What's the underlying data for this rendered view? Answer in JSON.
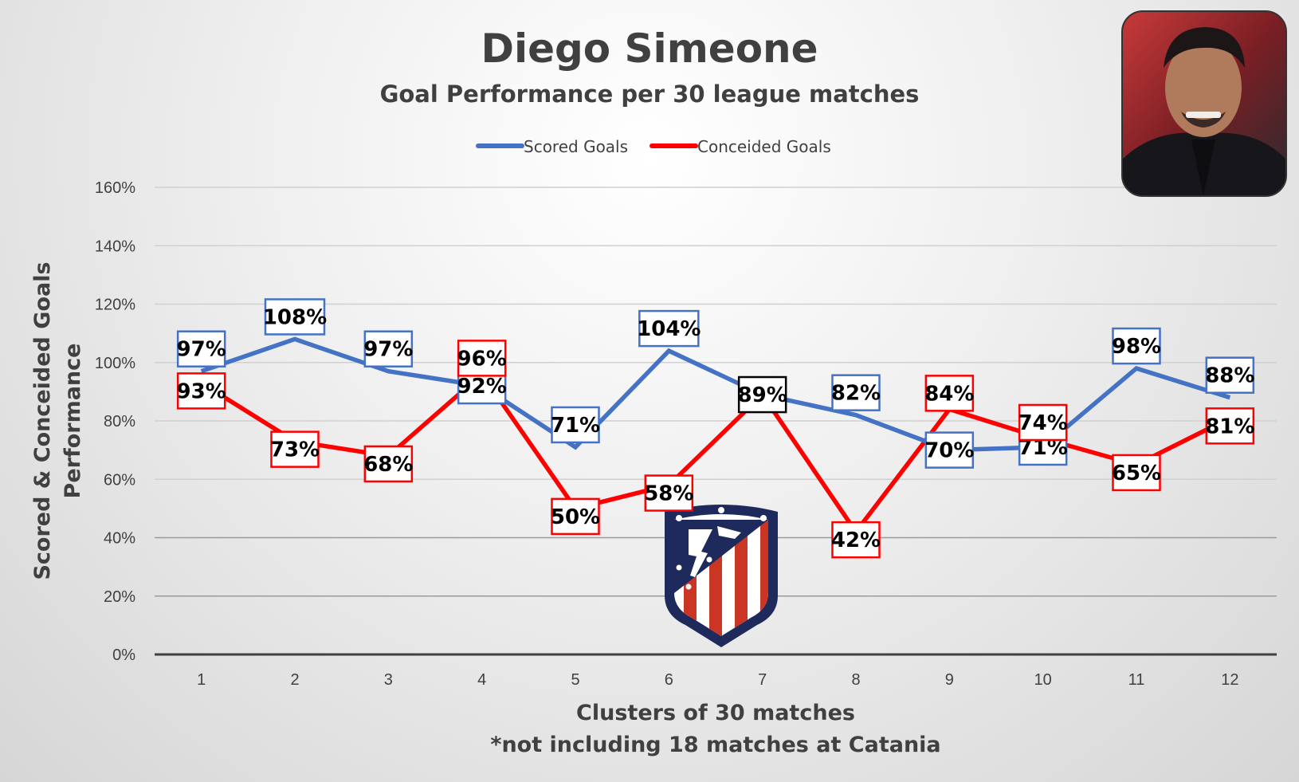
{
  "chart_data": {
    "type": "line",
    "title": "Diego Simeone",
    "subtitle": "Goal Performance per 30 league matches",
    "xlabel": "Clusters of 30 matches",
    "xnote": "*not including 18 matches at Catania",
    "ylabel_line1": "Scored & Conceided Goals",
    "ylabel_line2": "Performance",
    "categories": [
      "1",
      "2",
      "3",
      "4",
      "5",
      "6",
      "7",
      "8",
      "9",
      "10",
      "11",
      "12"
    ],
    "ylim": [
      0,
      160
    ],
    "yticks": [
      0,
      20,
      40,
      60,
      80,
      100,
      120,
      140,
      160
    ],
    "ytick_suffix": "%",
    "grid": true,
    "legend_position": "top",
    "series": [
      {
        "name": "Scored Goals",
        "color": "#4472c4",
        "values": [
          97,
          108,
          97,
          92,
          71,
          104,
          89,
          82,
          70,
          71,
          98,
          88
        ],
        "labels": [
          "97%",
          "108%",
          "97%",
          "92%",
          "71%",
          "104%",
          "89%",
          "82%",
          "70%",
          "71%",
          "98%",
          "88%"
        ]
      },
      {
        "name": "Conceided Goals",
        "color": "#ff0000",
        "values": [
          93,
          73,
          68,
          96,
          50,
          58,
          89,
          42,
          84,
          74,
          65,
          81
        ],
        "labels": [
          "93%",
          "73%",
          "68%",
          "96%",
          "50%",
          "58%",
          "89%",
          "42%",
          "84%",
          "74%",
          "65%",
          "81%"
        ]
      }
    ]
  },
  "images": {
    "photo_icon": "coach-photo-icon",
    "crest_icon": "atletico-crest-icon"
  }
}
